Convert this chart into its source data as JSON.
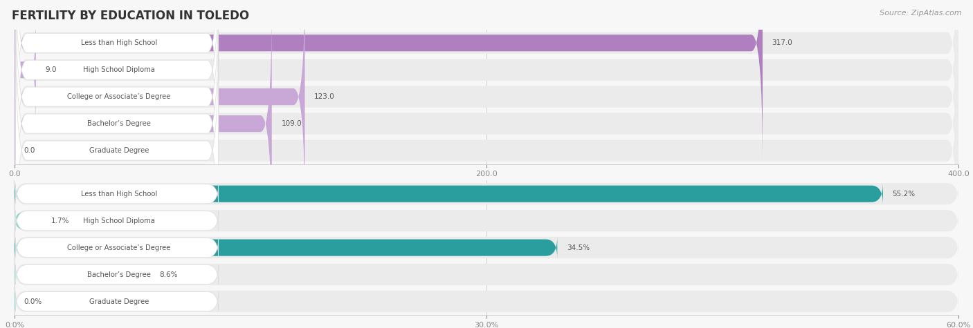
{
  "title": "FERTILITY BY EDUCATION IN TOLEDO",
  "source": "Source: ZipAtlas.com",
  "chart1": {
    "categories": [
      "Less than High School",
      "High School Diploma",
      "College or Associate’s Degree",
      "Bachelor’s Degree",
      "Graduate Degree"
    ],
    "values": [
      317.0,
      9.0,
      123.0,
      109.0,
      0.0
    ],
    "bar_color_main": "#b07fc0",
    "bar_color_light": "#c9a8d8",
    "xlim": [
      0,
      400
    ],
    "xticks": [
      0.0,
      200.0,
      400.0
    ]
  },
  "chart2": {
    "categories": [
      "Less than High School",
      "High School Diploma",
      "College or Associate’s Degree",
      "Bachelor’s Degree",
      "Graduate Degree"
    ],
    "values": [
      55.2,
      1.7,
      34.5,
      8.6,
      0.0
    ],
    "bar_color_main": "#2a9d9e",
    "bar_color_light": "#7dd4cc",
    "xlim": [
      0,
      60
    ],
    "xticks": [
      0.0,
      30.0,
      60.0
    ]
  },
  "label_fontsize": 7.2,
  "value_fontsize": 7.5,
  "title_fontsize": 12,
  "source_fontsize": 8,
  "row_bg_color": "#ebebeb",
  "label_bg_color": "#ffffff",
  "tick_label_color": "#888888",
  "title_color": "#333333",
  "value_color": "#555555",
  "label_text_color": "#555555"
}
